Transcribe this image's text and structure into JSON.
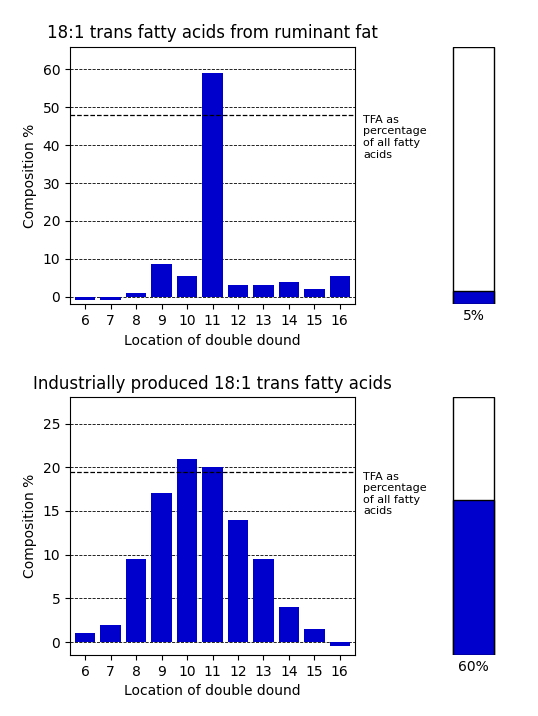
{
  "chart_data": [
    {
      "type": "bar",
      "title": "18:1 trans fatty acids from ruminant fat",
      "xlabel": "Location of double dound",
      "ylabel": "Composition %",
      "categories": [
        6,
        7,
        8,
        9,
        10,
        11,
        12,
        13,
        14,
        15,
        16
      ],
      "values": [
        -0.8,
        -0.8,
        1.0,
        8.5,
        5.5,
        59.0,
        3.0,
        3.0,
        4.0,
        2.0,
        5.5
      ],
      "color": "#0000CC",
      "ylim": [
        -2,
        66
      ],
      "yticks": [
        0,
        10,
        20,
        30,
        40,
        50,
        60
      ],
      "grid": true,
      "annotation": {
        "text": "TFA as\npercentage\nof all fatty\nacids",
        "y": 48
      },
      "share": {
        "value": 5,
        "total": 100,
        "label": "5%",
        "tick_labels": false
      }
    },
    {
      "type": "bar",
      "title": "Industrially produced 18:1 trans fatty acids",
      "xlabel": "Location of double dound",
      "ylabel": "Composition %",
      "categories": [
        6,
        7,
        8,
        9,
        10,
        11,
        12,
        13,
        14,
        15,
        16
      ],
      "values": [
        1.0,
        2.0,
        9.5,
        17.0,
        21.0,
        20.0,
        14.0,
        9.5,
        4.0,
        1.5,
        -0.5
      ],
      "color": "#0000CC",
      "ylim": [
        -1.5,
        28
      ],
      "yticks": [
        0,
        5,
        10,
        15,
        20,
        25
      ],
      "grid": true,
      "annotation": {
        "text": "TFA as\npercentage\nof all fatty\nacids",
        "y": 19.5
      },
      "share": {
        "value": 60,
        "total": 100,
        "label": "60%",
        "tick_labels": false
      }
    }
  ]
}
